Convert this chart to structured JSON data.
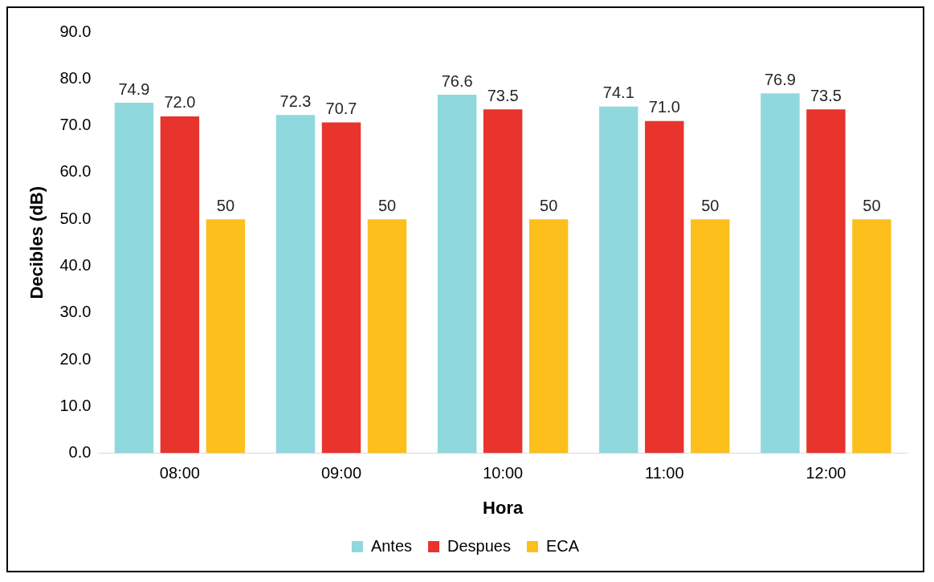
{
  "chart_data": {
    "type": "bar",
    "xlabel": "Hora",
    "ylabel": "Decibles (dB)",
    "categories": [
      "08:00",
      "09:00",
      "10:00",
      "11:00",
      "12:00"
    ],
    "series": [
      {
        "name": "Antes",
        "color": "#8fd8de",
        "values": [
          74.9,
          72.3,
          76.6,
          74.1,
          76.9
        ],
        "value_labels": [
          "74.9",
          "72.3",
          "76.6",
          "74.1",
          "76.9"
        ]
      },
      {
        "name": "Despues",
        "color": "#e8342c",
        "values": [
          72.0,
          70.7,
          73.5,
          71.0,
          73.5
        ],
        "value_labels": [
          "72.0",
          "70.7",
          "73.5",
          "71.0",
          "73.5"
        ]
      },
      {
        "name": "ECA",
        "color": "#fdbf1c",
        "values": [
          50,
          50,
          50,
          50,
          50
        ],
        "value_labels": [
          "50",
          "50",
          "50",
          "50",
          "50"
        ]
      }
    ],
    "ylim": [
      0,
      90
    ],
    "yticks": [
      {
        "value": 0,
        "label": "0.0"
      },
      {
        "value": 10,
        "label": "10.0"
      },
      {
        "value": 20,
        "label": "20.0"
      },
      {
        "value": 30,
        "label": "30.0"
      },
      {
        "value": 40,
        "label": "40.0"
      },
      {
        "value": 50,
        "label": "50.0"
      },
      {
        "value": 60,
        "label": "60.0"
      },
      {
        "value": 70,
        "label": "70.0"
      },
      {
        "value": 80,
        "label": "80.0"
      },
      {
        "value": 90,
        "label": "90.0"
      }
    ],
    "grid": false,
    "legend": "bottom"
  }
}
